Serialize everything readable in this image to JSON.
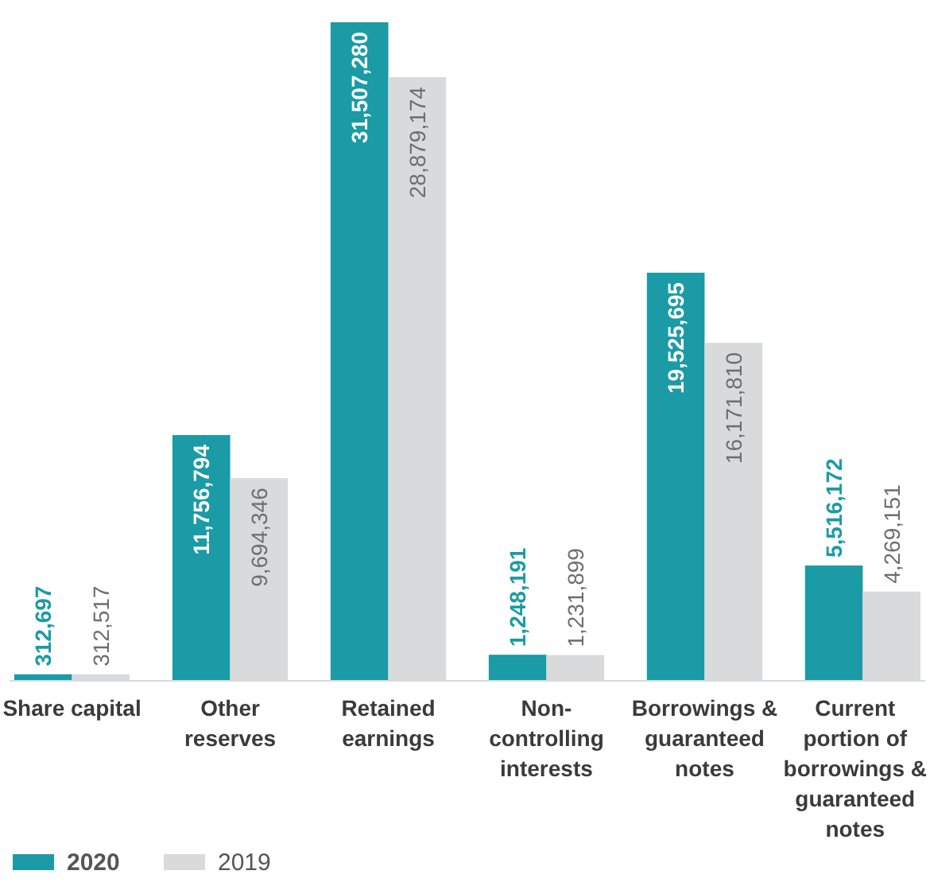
{
  "chart_data": {
    "type": "bar",
    "categories": [
      "Share capital",
      "Other reserves",
      "Retained earnings",
      "Non-controlling interests",
      "Borrowings & guaranteed notes",
      "Current portion of borrowings & guaranteed notes"
    ],
    "series": [
      {
        "name": "2020",
        "color": "#1a9ba6",
        "values": [
          312697,
          11756794,
          31507280,
          1248191,
          19525695,
          5516172
        ],
        "value_labels": [
          "312,697",
          "11,756,794",
          "31,507,280",
          "1,248,191",
          "19,525,695",
          "5,516,172"
        ]
      },
      {
        "name": "2019",
        "color": "#d8dadb",
        "values": [
          312517,
          9694346,
          28879174,
          1231899,
          16171810,
          4269151
        ],
        "value_labels": [
          "312,517",
          "9,694,346",
          "28,879,174",
          "1,231,899",
          "16,171,810",
          "4,269,151"
        ]
      }
    ],
    "legend": "bottom left"
  }
}
